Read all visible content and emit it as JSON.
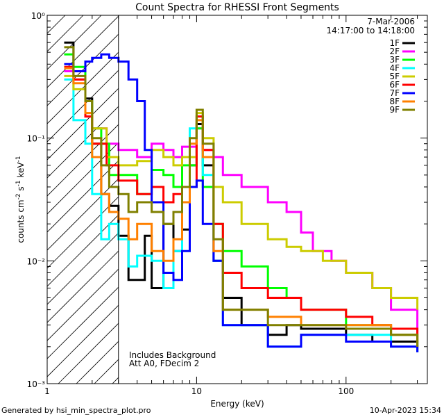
{
  "footer": {
    "generated_by": "Generated by hsi_min_spectra_plot.pro",
    "date": "10-Apr-2023 15:34"
  },
  "chart_data": {
    "type": "line",
    "title": "Count Spectra for RHESSI Front Segments",
    "xlabel": "Energy (keV)",
    "ylabel": "counts cm⁻² s⁻¹ keV⁻¹",
    "xscale": "log",
    "yscale": "log",
    "xlim": [
      1,
      350
    ],
    "ylim": [
      0.001,
      1
    ],
    "x_ticks": [
      {
        "value": 1,
        "label": "1"
      },
      {
        "value": 10,
        "label": "10"
      },
      {
        "value": 100,
        "label": "100"
      }
    ],
    "y_ticks": [
      {
        "value": 1,
        "label": "10⁰"
      },
      {
        "value": 0.1,
        "label": "10⁻¹"
      },
      {
        "value": 0.01,
        "label": "10⁻²"
      },
      {
        "value": 0.001,
        "label": "10⁻³"
      }
    ],
    "date_label": "7-Mar-2006",
    "time_label": "14:17:00 to 14:18:00",
    "annotations": [
      "Includes Background",
      "Att A0, FDecim 2"
    ],
    "hatched_region_keV": [
      1,
      3
    ],
    "series": [
      {
        "name": "1F",
        "color": "#000000",
        "points": [
          [
            1.3,
            0.6
          ],
          [
            1.5,
            0.35
          ],
          [
            1.8,
            0.21
          ],
          [
            2.0,
            0.09
          ],
          [
            2.3,
            0.035
          ],
          [
            2.6,
            0.028
          ],
          [
            3.0,
            0.016
          ],
          [
            3.5,
            0.007
          ],
          [
            4.5,
            0.016
          ],
          [
            5,
            0.006
          ],
          [
            6,
            0.02
          ],
          [
            7,
            0.012
          ],
          [
            8,
            0.018
          ],
          [
            9,
            0.06
          ],
          [
            10,
            0.13
          ],
          [
            11,
            0.06
          ],
          [
            13,
            0.01
          ],
          [
            15,
            0.005
          ],
          [
            20,
            0.003
          ],
          [
            25,
            0.003
          ],
          [
            30,
            0.0025
          ],
          [
            40,
            0.003
          ],
          [
            50,
            0.0028
          ],
          [
            70,
            0.0028
          ],
          [
            100,
            0.0025
          ],
          [
            150,
            0.0022
          ],
          [
            200,
            0.0022
          ],
          [
            300,
            0.0018
          ]
        ]
      },
      {
        "name": "2F",
        "color": "#ff00ff",
        "points": [
          [
            1.3,
            0.35
          ],
          [
            1.5,
            0.3
          ],
          [
            1.8,
            0.15
          ],
          [
            2.0,
            0.12
          ],
          [
            2.5,
            0.09
          ],
          [
            3.0,
            0.08
          ],
          [
            4,
            0.07
          ],
          [
            5,
            0.09
          ],
          [
            6,
            0.08
          ],
          [
            7,
            0.07
          ],
          [
            8,
            0.085
          ],
          [
            10,
            0.12
          ],
          [
            11,
            0.08
          ],
          [
            13,
            0.07
          ],
          [
            15,
            0.05
          ],
          [
            20,
            0.04
          ],
          [
            30,
            0.03
          ],
          [
            40,
            0.025
          ],
          [
            50,
            0.017
          ],
          [
            60,
            0.012
          ],
          [
            80,
            0.01
          ],
          [
            100,
            0.008
          ],
          [
            150,
            0.006
          ],
          [
            200,
            0.004
          ],
          [
            300,
            0.0025
          ]
        ]
      },
      {
        "name": "3F",
        "color": "#00ff00",
        "points": [
          [
            1.3,
            0.48
          ],
          [
            1.5,
            0.38
          ],
          [
            1.8,
            0.2
          ],
          [
            2.0,
            0.12
          ],
          [
            2.3,
            0.09
          ],
          [
            2.6,
            0.05
          ],
          [
            3.0,
            0.05
          ],
          [
            4,
            0.035
          ],
          [
            5,
            0.055
          ],
          [
            6,
            0.05
          ],
          [
            7,
            0.04
          ],
          [
            8,
            0.06
          ],
          [
            10,
            0.12
          ],
          [
            11,
            0.04
          ],
          [
            13,
            0.02
          ],
          [
            15,
            0.012
          ],
          [
            20,
            0.009
          ],
          [
            30,
            0.006
          ],
          [
            40,
            0.005
          ],
          [
            50,
            0.004
          ],
          [
            70,
            0.004
          ],
          [
            100,
            0.003
          ],
          [
            150,
            0.003
          ],
          [
            200,
            0.0025
          ],
          [
            300,
            0.002
          ]
        ]
      },
      {
        "name": "4F",
        "color": "#00ffff",
        "points": [
          [
            1.3,
            0.3
          ],
          [
            1.5,
            0.14
          ],
          [
            1.8,
            0.09
          ],
          [
            2.0,
            0.035
          ],
          [
            2.3,
            0.015
          ],
          [
            2.6,
            0.02
          ],
          [
            3.0,
            0.015
          ],
          [
            3.5,
            0.009
          ],
          [
            4,
            0.011
          ],
          [
            5,
            0.01
          ],
          [
            6,
            0.006
          ],
          [
            7,
            0.012
          ],
          [
            8,
            0.03
          ],
          [
            9,
            0.12
          ],
          [
            10,
            0.15
          ],
          [
            11,
            0.05
          ],
          [
            13,
            0.01
          ],
          [
            15,
            0.003
          ],
          [
            20,
            0.003
          ],
          [
            30,
            0.002
          ],
          [
            50,
            0.0025
          ],
          [
            100,
            0.0025
          ],
          [
            200,
            0.002
          ],
          [
            300,
            0.0018
          ]
        ]
      },
      {
        "name": "5F",
        "color": "#cccc00",
        "points": [
          [
            1.3,
            0.32
          ],
          [
            1.5,
            0.25
          ],
          [
            1.8,
            0.16
          ],
          [
            2.0,
            0.12
          ],
          [
            2.5,
            0.07
          ],
          [
            3.0,
            0.06
          ],
          [
            4,
            0.065
          ],
          [
            5,
            0.08
          ],
          [
            6,
            0.07
          ],
          [
            7,
            0.06
          ],
          [
            8,
            0.07
          ],
          [
            10,
            0.16
          ],
          [
            11,
            0.1
          ],
          [
            13,
            0.04
          ],
          [
            15,
            0.03
          ],
          [
            20,
            0.02
          ],
          [
            30,
            0.015
          ],
          [
            40,
            0.013
          ],
          [
            50,
            0.012
          ],
          [
            70,
            0.01
          ],
          [
            100,
            0.008
          ],
          [
            150,
            0.006
          ],
          [
            200,
            0.005
          ],
          [
            300,
            0.004
          ]
        ]
      },
      {
        "name": "6F",
        "color": "#ff0000",
        "points": [
          [
            1.3,
            0.38
          ],
          [
            1.5,
            0.3
          ],
          [
            1.8,
            0.15
          ],
          [
            2.0,
            0.09
          ],
          [
            2.5,
            0.06
          ],
          [
            3.0,
            0.045
          ],
          [
            4,
            0.035
          ],
          [
            5,
            0.04
          ],
          [
            6,
            0.03
          ],
          [
            7,
            0.035
          ],
          [
            8,
            0.04
          ],
          [
            10,
            0.15
          ],
          [
            11,
            0.08
          ],
          [
            13,
            0.02
          ],
          [
            15,
            0.008
          ],
          [
            20,
            0.006
          ],
          [
            30,
            0.005
          ],
          [
            50,
            0.004
          ],
          [
            70,
            0.004
          ],
          [
            100,
            0.0035
          ],
          [
            150,
            0.003
          ],
          [
            200,
            0.0028
          ],
          [
            300,
            0.0022
          ]
        ]
      },
      {
        "name": "7F",
        "color": "#0000ff",
        "points": [
          [
            1.3,
            0.4
          ],
          [
            1.5,
            0.35
          ],
          [
            1.8,
            0.42
          ],
          [
            2.0,
            0.45
          ],
          [
            2.3,
            0.48
          ],
          [
            2.6,
            0.45
          ],
          [
            3.0,
            0.42
          ],
          [
            3.5,
            0.3
          ],
          [
            4,
            0.2
          ],
          [
            4.5,
            0.08
          ],
          [
            5,
            0.03
          ],
          [
            6,
            0.008
          ],
          [
            7,
            0.007
          ],
          [
            8,
            0.012
          ],
          [
            9,
            0.04
          ],
          [
            10,
            0.045
          ],
          [
            11,
            0.02
          ],
          [
            13,
            0.01
          ],
          [
            15,
            0.003
          ],
          [
            20,
            0.003
          ],
          [
            30,
            0.002
          ],
          [
            50,
            0.0025
          ],
          [
            100,
            0.0022
          ],
          [
            200,
            0.002
          ],
          [
            300,
            0.0018
          ]
        ]
      },
      {
        "name": "8F",
        "color": "#ff8000",
        "points": [
          [
            1.3,
            0.37
          ],
          [
            1.5,
            0.28
          ],
          [
            1.8,
            0.16
          ],
          [
            2.0,
            0.07
          ],
          [
            2.3,
            0.035
          ],
          [
            2.6,
            0.025
          ],
          [
            3.0,
            0.022
          ],
          [
            3.5,
            0.015
          ],
          [
            4,
            0.02
          ],
          [
            5,
            0.012
          ],
          [
            6,
            0.01
          ],
          [
            7,
            0.015
          ],
          [
            8,
            0.03
          ],
          [
            9,
            0.09
          ],
          [
            10,
            0.14
          ],
          [
            11,
            0.07
          ],
          [
            13,
            0.012
          ],
          [
            15,
            0.004
          ],
          [
            20,
            0.004
          ],
          [
            30,
            0.0035
          ],
          [
            50,
            0.003
          ],
          [
            100,
            0.003
          ],
          [
            200,
            0.0025
          ],
          [
            300,
            0.002
          ]
        ]
      },
      {
        "name": "9F",
        "color": "#808000",
        "points": [
          [
            1.3,
            0.55
          ],
          [
            1.5,
            0.32
          ],
          [
            1.8,
            0.2
          ],
          [
            2.0,
            0.1
          ],
          [
            2.3,
            0.06
          ],
          [
            2.6,
            0.04
          ],
          [
            3.0,
            0.035
          ],
          [
            3.5,
            0.025
          ],
          [
            4,
            0.03
          ],
          [
            5,
            0.025
          ],
          [
            6,
            0.02
          ],
          [
            7,
            0.025
          ],
          [
            8,
            0.04
          ],
          [
            9,
            0.1
          ],
          [
            10,
            0.17
          ],
          [
            11,
            0.09
          ],
          [
            13,
            0.015
          ],
          [
            15,
            0.004
          ],
          [
            20,
            0.004
          ],
          [
            30,
            0.003
          ],
          [
            50,
            0.003
          ],
          [
            100,
            0.0028
          ],
          [
            200,
            0.0025
          ],
          [
            300,
            0.002
          ]
        ]
      }
    ]
  }
}
